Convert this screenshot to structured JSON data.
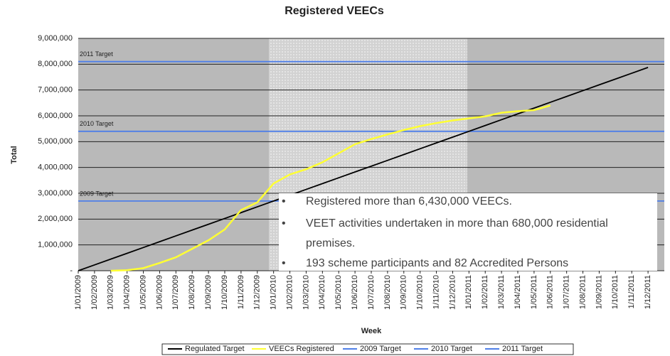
{
  "chart_data": {
    "type": "line",
    "title": "Registered VEECs",
    "x_label": "Week",
    "y_label": "Total",
    "categories": [
      "1/01/2009",
      "1/02/2009",
      "1/03/2009",
      "1/04/2009",
      "1/05/2009",
      "1/06/2009",
      "1/07/2009",
      "1/08/2009",
      "1/09/2009",
      "1/10/2009",
      "1/11/2009",
      "1/12/2009",
      "1/01/2010",
      "1/02/2010",
      "1/03/2010",
      "1/04/2010",
      "1/05/2010",
      "1/06/2010",
      "1/07/2010",
      "1/08/2010",
      "1/09/2010",
      "1/10/2010",
      "1/11/2010",
      "1/12/2010",
      "1/01/2011",
      "1/02/2011",
      "1/03/2011",
      "1/04/2011",
      "1/05/2011",
      "1/06/2011",
      "1/07/2011",
      "1/08/2011",
      "1/09/2011",
      "1/10/2011",
      "1/11/2011",
      "1/12/2011"
    ],
    "series": [
      {
        "name": "Regulated Target",
        "color": "#000000",
        "values": [
          0,
          225000,
          450000,
          675000,
          900000,
          1125000,
          1350000,
          1575000,
          1800000,
          2025000,
          2250000,
          2475000,
          2700000,
          2925000,
          3150000,
          3375000,
          3600000,
          3825000,
          4050000,
          4275000,
          4500000,
          4725000,
          4950000,
          5175000,
          5400000,
          5625000,
          5850000,
          6075000,
          6300000,
          6525000,
          6750000,
          6975000,
          7200000,
          7425000,
          7650000,
          7875000
        ]
      },
      {
        "name": "VEECs Registered",
        "color": "#ffff33",
        "values": [
          null,
          null,
          0,
          20000,
          100000,
          300000,
          520000,
          850000,
          1180000,
          1600000,
          2350000,
          2650000,
          3380000,
          3730000,
          3930000,
          4200000,
          4550000,
          4900000,
          5100000,
          5280000,
          5450000,
          5600000,
          5720000,
          5820000,
          5900000,
          5980000,
          6120000,
          6180000,
          6220000,
          6400000,
          null,
          null,
          null,
          null,
          null,
          null
        ]
      },
      {
        "name": "2009 Target",
        "color": "#4f7fe8",
        "value": 2700000,
        "label": "2009 Target"
      },
      {
        "name": "2010 Target",
        "color": "#4f7fe8",
        "value": 5400000,
        "label": "2010 Target"
      },
      {
        "name": "2011 Target",
        "color": "#4f7fe8",
        "value": 8100000,
        "label": "2011 Target"
      }
    ],
    "ylim": [
      0,
      9000000
    ],
    "yticks": [
      {
        "value": 0,
        "label": "-"
      },
      {
        "value": 1000000,
        "label": "1,000,000"
      },
      {
        "value": 2000000,
        "label": "2,000,000"
      },
      {
        "value": 3000000,
        "label": "3,000,000"
      },
      {
        "value": 4000000,
        "label": "4,000,000"
      },
      {
        "value": 5000000,
        "label": "5,000,000"
      },
      {
        "value": 6000000,
        "label": "6,000,000"
      },
      {
        "value": 7000000,
        "label": "7,000,000"
      },
      {
        "value": 8000000,
        "label": "8,000,000"
      },
      {
        "value": 9000000,
        "label": "9,000,000"
      }
    ],
    "grid": true,
    "legend": "bottom",
    "notes": [
      "Registered more than 6,430,000 VEECs.",
      "VEET activities undertaken in more than 680,000 residential premises.",
      "193 scheme participants and 82 Accredited Persons"
    ]
  }
}
